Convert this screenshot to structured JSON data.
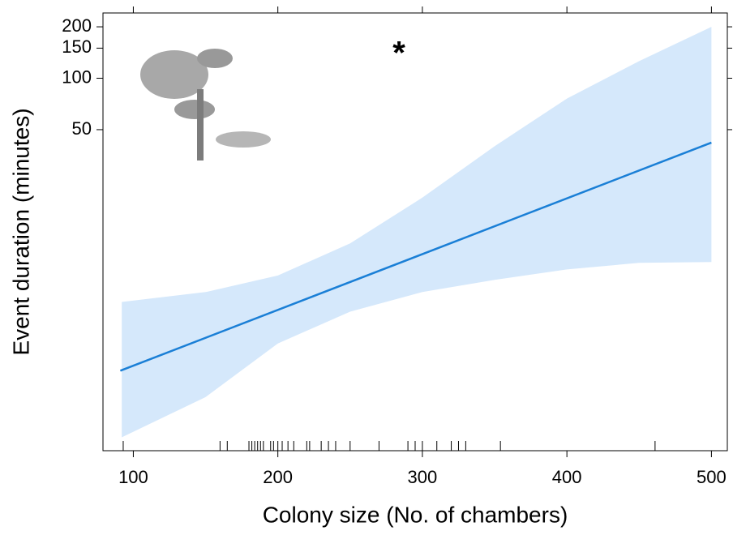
{
  "chart_data": {
    "type": "line",
    "xlabel": "Colony size (No. of chambers)",
    "ylabel": "Event duration (minutes)",
    "annotation": "*",
    "log_y": true,
    "xlim": [
      79,
      511
    ],
    "ylim": [
      0.66,
      241
    ],
    "xticks": [
      100,
      200,
      300,
      400,
      500
    ],
    "yticks": [
      50,
      100,
      150,
      200
    ],
    "series": [
      {
        "x": [
          91,
          500
        ],
        "values": [
          1.94,
          42
        ],
        "color": "#1a7fd6"
      }
    ],
    "band": {
      "x": [
        92,
        150,
        200,
        250,
        300,
        350,
        400,
        450,
        500
      ],
      "lower": [
        0.79,
        1.36,
        2.8,
        4.3,
        5.6,
        6.6,
        7.6,
        8.3,
        8.4
      ],
      "upper": [
        4.9,
        5.6,
        7.0,
        10.8,
        20,
        40,
        76,
        126,
        200
      ],
      "color": "#d5e8fb"
    },
    "rug": [
      93,
      160,
      165,
      180,
      182,
      184,
      186,
      188,
      190,
      195,
      197,
      200,
      203,
      207,
      211,
      220,
      222,
      230,
      235,
      240,
      250,
      270,
      290,
      295,
      300,
      310,
      320,
      325,
      330,
      354,
      461
    ]
  }
}
